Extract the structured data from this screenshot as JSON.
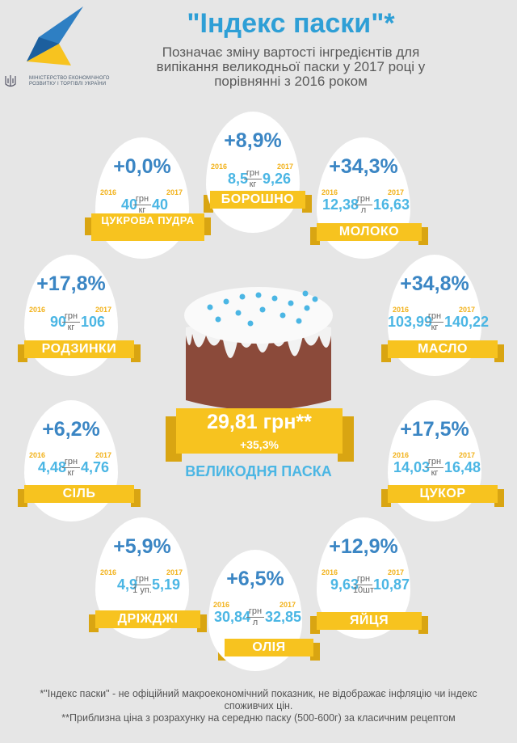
{
  "header": {
    "title": "\"Індекс паски\"*",
    "subtitle": "Позначає зміну вартості інгредієнтів для випікання великодньої паски у 2017 році у порівнянні з 2016 роком",
    "ministry": "МІНІСТЕРСТВО ЕКОНОМІЧНОГО РОЗВИТКУ І ТОРГІВЛІ УКРАЇНИ"
  },
  "ingredients": [
    {
      "name": "ЦУКРОВА ПУДРА",
      "pct": "+0,0%",
      "y2016": "2016",
      "y2017": "2017",
      "p2016": "40",
      "p2017": "40",
      "unit_top": "грн",
      "unit_bottom": "кг"
    },
    {
      "name": "БОРОШНО",
      "pct": "+8,9%",
      "y2016": "2016",
      "y2017": "2017",
      "p2016": "8,5",
      "p2017": "9,26",
      "unit_top": "грн",
      "unit_bottom": "кг"
    },
    {
      "name": "МОЛОКО",
      "pct": "+34,3%",
      "y2016": "2016",
      "y2017": "2017",
      "p2016": "12,38",
      "p2017": "16,63",
      "unit_top": "грн",
      "unit_bottom": "л"
    },
    {
      "name": "РОДЗИНКИ",
      "pct": "+17,8%",
      "y2016": "2016",
      "y2017": "2017",
      "p2016": "90",
      "p2017": "106",
      "unit_top": "грн",
      "unit_bottom": "кг"
    },
    {
      "name": "МАСЛО",
      "pct": "+34,8%",
      "y2016": "2016",
      "y2017": "2017",
      "p2016": "103,99",
      "p2017": "140,22",
      "unit_top": "грн",
      "unit_bottom": "кг"
    },
    {
      "name": "СІЛЬ",
      "pct": "+6,2%",
      "y2016": "2016",
      "y2017": "2017",
      "p2016": "4,48",
      "p2017": "4,76",
      "unit_top": "грн",
      "unit_bottom": "кг"
    },
    {
      "name": "ЦУКОР",
      "pct": "+17,5%",
      "y2016": "2016",
      "y2017": "2017",
      "p2016": "14,03",
      "p2017": "16,48",
      "unit_top": "грн",
      "unit_bottom": "кг"
    },
    {
      "name": "ДРІЖДЖІ",
      "pct": "+5,9%",
      "y2016": "2016",
      "y2017": "2017",
      "p2016": "4,9",
      "p2017": "5,19",
      "unit_top": "грн",
      "unit_bottom": "1 уп."
    },
    {
      "name": "ОЛІЯ",
      "pct": "+6,5%",
      "y2016": "2016",
      "y2017": "2017",
      "p2016": "30,84",
      "p2017": "32,85",
      "unit_top": "грн",
      "unit_bottom": "л"
    },
    {
      "name": "ЯЙЦЯ",
      "pct": "+12,9%",
      "y2016": "2016",
      "y2017": "2017",
      "p2016": "9,63",
      "p2017": "10,87",
      "unit_top": "грн",
      "unit_bottom": "10шт"
    }
  ],
  "center": {
    "price": "29,81 грн**",
    "pct": "+35,3%",
    "label": "ВЕЛИКОДНЯ ПАСКА"
  },
  "notes": {
    "note1": "*\"Індекс паски\" - не офіційний макроекономічний показник, не відображає інфляцію чи індекс споживчих цін.",
    "note2": "**Приблизна ціна з розрахунку на середню паску (500-600г) за класичним рецептом"
  },
  "colors": {
    "blue": "#3b86c4",
    "lightblue": "#4bb6e4",
    "yellow": "#f7c31f",
    "background": "#e6e6e6"
  }
}
